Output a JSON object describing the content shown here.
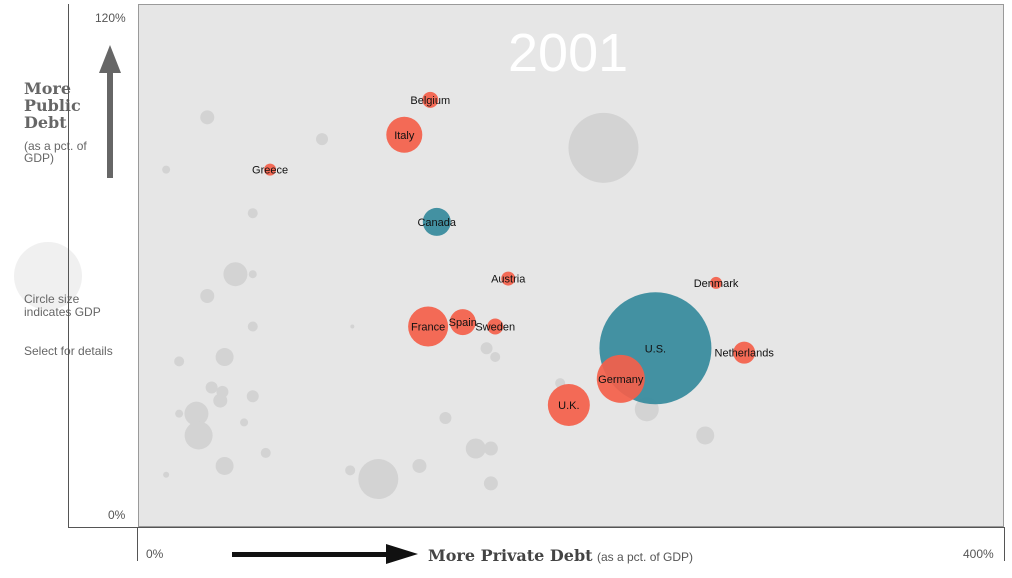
{
  "axis": {
    "y_top_label": "120%",
    "y_bottom_label": "0%",
    "x_left_label": "0%",
    "x_right_label": "400%"
  },
  "y_title": {
    "line1": "More",
    "line2": "Public",
    "line3": "Debt",
    "sub": "(as a pct. of GDP)"
  },
  "legend": {
    "size_note": "Circle size indicates GDP",
    "select_note": "Select for details"
  },
  "x_title": {
    "main": "More Private Debt",
    "sub": "(as a pct. of GDP)"
  },
  "year": "2001",
  "colors": {
    "highlight": "#f4604a",
    "selected": "#3a8c9e",
    "other": "#d3d3d3",
    "background": "#e6e6e6"
  },
  "chart_data": {
    "type": "scatter",
    "xlabel": "More Private Debt (as a pct. of GDP)",
    "ylabel": "More Public Debt (as a pct. of GDP)",
    "xlim": [
      0,
      400
    ],
    "ylim": [
      0,
      120
    ],
    "size_encodes": "GDP",
    "labeled_points": [
      {
        "label": "Belgium",
        "x": 135,
        "y": 98,
        "r": 8,
        "group": "highlight"
      },
      {
        "label": "Italy",
        "x": 123,
        "y": 90,
        "r": 18,
        "group": "highlight"
      },
      {
        "label": "Greece",
        "x": 61,
        "y": 82,
        "r": 6,
        "group": "highlight"
      },
      {
        "label": "Canada",
        "x": 138,
        "y": 70,
        "r": 14,
        "group": "selected"
      },
      {
        "label": "Austria",
        "x": 171,
        "y": 57,
        "r": 7,
        "group": "highlight"
      },
      {
        "label": "Denmark",
        "x": 267,
        "y": 56,
        "r": 6,
        "group": "highlight"
      },
      {
        "label": "France",
        "x": 134,
        "y": 46,
        "r": 20,
        "group": "highlight"
      },
      {
        "label": "Spain",
        "x": 150,
        "y": 47,
        "r": 13,
        "group": "highlight"
      },
      {
        "label": "Sweden",
        "x": 165,
        "y": 46,
        "r": 8,
        "group": "highlight"
      },
      {
        "label": "U.S.",
        "x": 239,
        "y": 41,
        "r": 56,
        "group": "selected"
      },
      {
        "label": "Netherlands",
        "x": 280,
        "y": 40,
        "r": 11,
        "group": "highlight"
      },
      {
        "label": "Germany",
        "x": 223,
        "y": 34,
        "r": 24,
        "group": "highlight"
      },
      {
        "label": "U.K.",
        "x": 199,
        "y": 28,
        "r": 21,
        "group": "highlight"
      }
    ],
    "other_points": [
      {
        "x": 32,
        "y": 94,
        "r": 7
      },
      {
        "x": 85,
        "y": 89,
        "r": 6
      },
      {
        "x": 215,
        "y": 87,
        "r": 35
      },
      {
        "x": 13,
        "y": 82,
        "r": 4
      },
      {
        "x": 53,
        "y": 72,
        "r": 5
      },
      {
        "x": 45,
        "y": 58,
        "r": 12
      },
      {
        "x": 53,
        "y": 58,
        "r": 4
      },
      {
        "x": 32,
        "y": 53,
        "r": 7
      },
      {
        "x": 53,
        "y": 46,
        "r": 5
      },
      {
        "x": 99,
        "y": 46,
        "r": 2
      },
      {
        "x": 161,
        "y": 41,
        "r": 6
      },
      {
        "x": 165,
        "y": 39,
        "r": 5
      },
      {
        "x": 19,
        "y": 38,
        "r": 5
      },
      {
        "x": 40,
        "y": 39,
        "r": 9
      },
      {
        "x": 34,
        "y": 32,
        "r": 6
      },
      {
        "x": 39,
        "y": 31,
        "r": 6
      },
      {
        "x": 53,
        "y": 30,
        "r": 6
      },
      {
        "x": 38,
        "y": 29,
        "r": 7
      },
      {
        "x": 195,
        "y": 33,
        "r": 5
      },
      {
        "x": 27,
        "y": 26,
        "r": 12
      },
      {
        "x": 19,
        "y": 26,
        "r": 4
      },
      {
        "x": 49,
        "y": 24,
        "r": 4
      },
      {
        "x": 28,
        "y": 21,
        "r": 14
      },
      {
        "x": 142,
        "y": 25,
        "r": 6
      },
      {
        "x": 235,
        "y": 27,
        "r": 12
      },
      {
        "x": 262,
        "y": 21,
        "r": 9
      },
      {
        "x": 156,
        "y": 18,
        "r": 10
      },
      {
        "x": 163,
        "y": 18,
        "r": 7
      },
      {
        "x": 59,
        "y": 17,
        "r": 5
      },
      {
        "x": 40,
        "y": 14,
        "r": 9
      },
      {
        "x": 98,
        "y": 13,
        "r": 5
      },
      {
        "x": 130,
        "y": 14,
        "r": 7
      },
      {
        "x": 111,
        "y": 11,
        "r": 20
      },
      {
        "x": 13,
        "y": 12,
        "r": 3
      },
      {
        "x": 163,
        "y": 10,
        "r": 7
      }
    ]
  }
}
